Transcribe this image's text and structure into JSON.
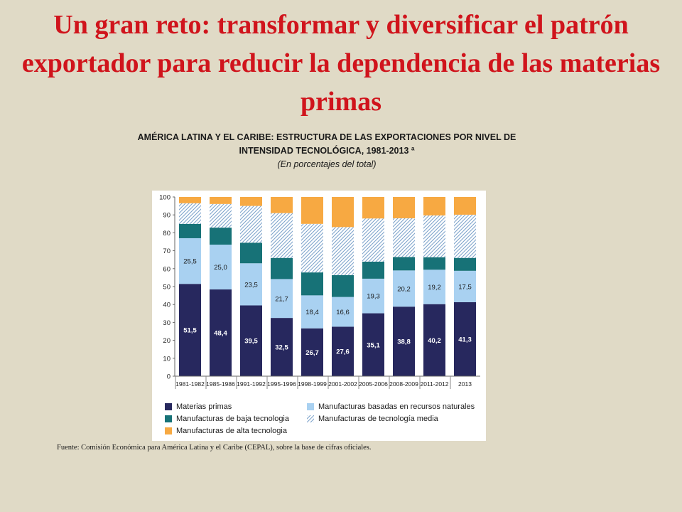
{
  "slide": {
    "title": "Un gran reto: transformar y diversificar el patrón exportador para reducir la dependencia de las materias primas",
    "source": "Fuente: Comisión Económica para América Latina y el Caribe (CEPAL), sobre la base de cifras oficiales."
  },
  "chart_data": {
    "type": "bar",
    "stacked": true,
    "title": "AMÉRICA LATINA Y EL CARIBE: ESTRUCTURA DE LAS EXPORTACIONES POR NIVEL DE INTENSIDAD TECNOLÓGICA, 1981-2013 ª",
    "subtitle": "(En porcentajes del total)",
    "xlabel": "",
    "ylabel": "",
    "ylim": [
      0,
      100
    ],
    "yticks": [
      0,
      10,
      20,
      30,
      40,
      50,
      60,
      70,
      80,
      90,
      100
    ],
    "grid": false,
    "legend_position": "bottom",
    "categories": [
      "1981-1982",
      "1985-1986",
      "1991-1992",
      "1995-1996",
      "1998-1999",
      "2001-2002",
      "2005-2006",
      "2008-2009",
      "2011-2012",
      "2013"
    ],
    "series": [
      {
        "name": "Materias primas",
        "color": "#27285e",
        "pattern": "solid",
        "values": [
          51.5,
          48.4,
          39.5,
          32.5,
          26.7,
          27.6,
          35.1,
          38.8,
          40.2,
          41.3
        ],
        "labels": [
          "51,5",
          "48,4",
          "39,5",
          "32,5",
          "26,7",
          "27,6",
          "35,1",
          "38,8",
          "40,2",
          "41,3"
        ]
      },
      {
        "name": "Manufacturas basadas en recursos naturales",
        "color": "#a9d1f1",
        "pattern": "solid",
        "values": [
          25.5,
          25.0,
          23.5,
          21.7,
          18.4,
          16.6,
          19.3,
          20.2,
          19.2,
          17.5
        ],
        "labels": [
          "25,5",
          "25,0",
          "23,5",
          "21,7",
          "18,4",
          "16,6",
          "19,3",
          "20,2",
          "19,2",
          "17,5"
        ]
      },
      {
        "name": "Manufacturas de baja tecnologia",
        "color": "#177277",
        "pattern": "solid",
        "values": [
          8,
          9.5,
          11.5,
          11.8,
          12.8,
          12.2,
          9.5,
          7.5,
          7,
          7.2
        ]
      },
      {
        "name": "Manufacturas de tecnología media",
        "color": "#7ea4cc",
        "pattern": "hatch",
        "values": [
          11.5,
          13.2,
          20.5,
          25,
          27.1,
          26.8,
          24.1,
          21.6,
          23.3,
          24.1
        ]
      },
      {
        "name": "Manufacturas de alta tecnologia",
        "color": "#f7a942",
        "pattern": "solid",
        "values": [
          3.5,
          3.9,
          5.0,
          9.0,
          15.0,
          16.8,
          12.0,
          11.9,
          10.3,
          9.9
        ]
      }
    ]
  }
}
